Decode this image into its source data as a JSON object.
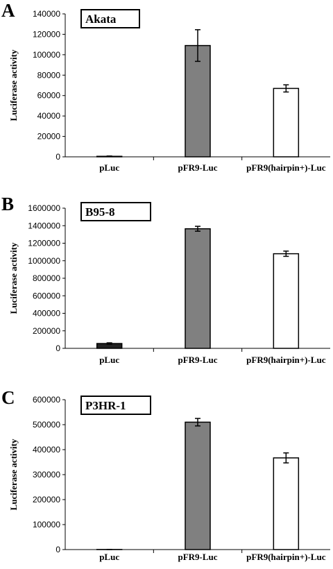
{
  "chart_data": [
    {
      "type": "bar",
      "panel": "A",
      "title": "Akata",
      "ylabel": "Luciferase activity",
      "xlabel": "",
      "categories": [
        "pLuc",
        "pFR9-Luc",
        "pFR9(hairpin+)-Luc"
      ],
      "values": [
        500,
        109000,
        67000
      ],
      "errors": [
        300,
        15500,
        3500
      ],
      "bar_colors": [
        "#222222",
        "#808080",
        "#ffffff"
      ],
      "ylim": [
        0,
        140000
      ],
      "yticks": [
        0,
        20000,
        40000,
        60000,
        80000,
        100000,
        120000,
        140000
      ],
      "grid": false
    },
    {
      "type": "bar",
      "panel": "B",
      "title": "B95-8",
      "ylabel": "Luciferase activity",
      "xlabel": "",
      "categories": [
        "pLuc",
        "pFR9-Luc",
        "pFR9(hairpin+)-Luc"
      ],
      "values": [
        55000,
        1365000,
        1080000
      ],
      "errors": [
        8000,
        28000,
        30000
      ],
      "bar_colors": [
        "#222222",
        "#808080",
        "#ffffff"
      ],
      "ylim": [
        0,
        1600000
      ],
      "yticks": [
        0,
        200000,
        400000,
        600000,
        800000,
        1000000,
        1200000,
        1400000,
        1600000
      ],
      "grid": false
    },
    {
      "type": "bar",
      "panel": "C",
      "title": "P3HR-1",
      "ylabel": "Luciferase activity",
      "xlabel": "",
      "categories": [
        "pLuc",
        "pFR9-Luc",
        "pFR9(hairpin+)-Luc"
      ],
      "values": [
        500,
        510000,
        367000
      ],
      "errors": [
        300,
        15000,
        20000
      ],
      "bar_colors": [
        "#222222",
        "#808080",
        "#ffffff"
      ],
      "ylim": [
        0,
        600000
      ],
      "yticks": [
        0,
        100000,
        200000,
        300000,
        400000,
        500000,
        600000
      ],
      "grid": false
    }
  ]
}
